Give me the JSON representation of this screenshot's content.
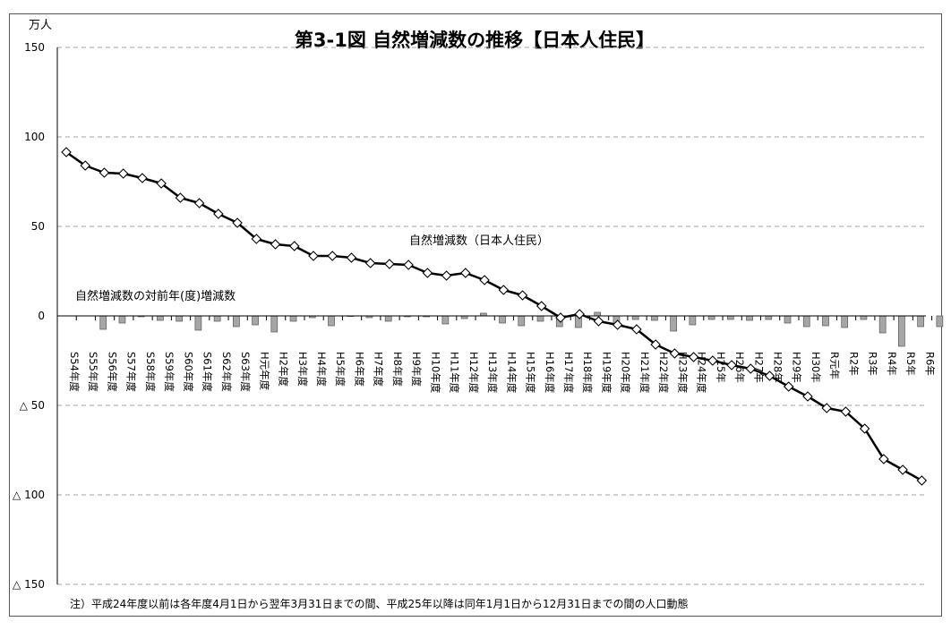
{
  "chart_data": {
    "type": "line+bar",
    "title": "第3-1図  自然増減数の推移【日本人住民】",
    "unit_label": "万人",
    "ylim": [
      -150,
      150
    ],
    "yticks": [
      {
        "value": 150,
        "label": "150"
      },
      {
        "value": 100,
        "label": "100"
      },
      {
        "value": 50,
        "label": "50"
      },
      {
        "value": 0,
        "label": "0"
      },
      {
        "value": -50,
        "label": "△ 50"
      },
      {
        "value": -100,
        "label": "△ 100"
      },
      {
        "value": -150,
        "label": "△ 150"
      }
    ],
    "grid": true,
    "categories": [
      "S54年度",
      "S55年度",
      "S56年度",
      "S57年度",
      "S58年度",
      "S59年度",
      "S60年度",
      "S61年度",
      "S62年度",
      "S63年度",
      "H元年度",
      "H2年度",
      "H3年度",
      "H4年度",
      "H5年度",
      "H6年度",
      "H7年度",
      "H8年度",
      "H9年度",
      "H10年度",
      "H11年度",
      "H12年度",
      "H13年度",
      "H14年度",
      "H15年度",
      "H16年度",
      "H17年度",
      "H18年度",
      "H19年度",
      "H20年度",
      "H21年度",
      "H22年度",
      "H23年度",
      "H24年度",
      "H25年",
      "H26年",
      "H27年",
      "H28年",
      "H29年",
      "H30年",
      "R元年",
      "R2年",
      "R3年",
      "R4年",
      "R5年",
      "R6年"
    ],
    "series": [
      {
        "name": "自然増減数（日本人住民）",
        "type": "line",
        "values": [
          91.5,
          84,
          80,
          79.5,
          77,
          74,
          66,
          63,
          57,
          52,
          43,
          40,
          39,
          33.5,
          33.5,
          32.5,
          29.5,
          29,
          28.5,
          24,
          22.5,
          24,
          20,
          14.5,
          11.5,
          5.5,
          -1,
          1,
          -3,
          -5,
          -7.5,
          -16,
          -21,
          -23,
          -25,
          -27.5,
          -29.5,
          -33.5,
          -39.5,
          -45,
          -51.5,
          -53.5,
          -63,
          -80,
          -86,
          -92
        ]
      },
      {
        "name": "自然増減数の対前年(度)増減数",
        "type": "bar",
        "values": [
          null,
          -7.5,
          -4,
          -0.5,
          -2.5,
          -3,
          -8,
          -3,
          -6,
          -5,
          -9,
          -3,
          -1,
          -5.5,
          0,
          -1,
          -3,
          -0.5,
          -0.5,
          -4.5,
          -1.5,
          1.5,
          -4,
          -5.5,
          -3,
          -6,
          -6.5,
          2,
          -4,
          -2,
          -2.5,
          -8.5,
          -5,
          -2,
          -2,
          -2.5,
          -2,
          -4,
          -6,
          -5.5,
          -6.5,
          -2,
          -9.5,
          -17,
          -6,
          -6
        ]
      }
    ],
    "annotations": {
      "line_label": "自然増減数（日本人住民）",
      "bar_label": "自然増減数の対前年(度)増減数"
    },
    "colors": {
      "line": "#000000",
      "bar_fill": "#a6a6a6",
      "bar_stroke": "#595959",
      "grid": "#a0a0a0"
    },
    "footnote": "注）平成24年度以前は各年度4月1日から翌年3月31日までの間、平成25年以降は同年1月1日から12月31日までの間の人口動態"
  }
}
